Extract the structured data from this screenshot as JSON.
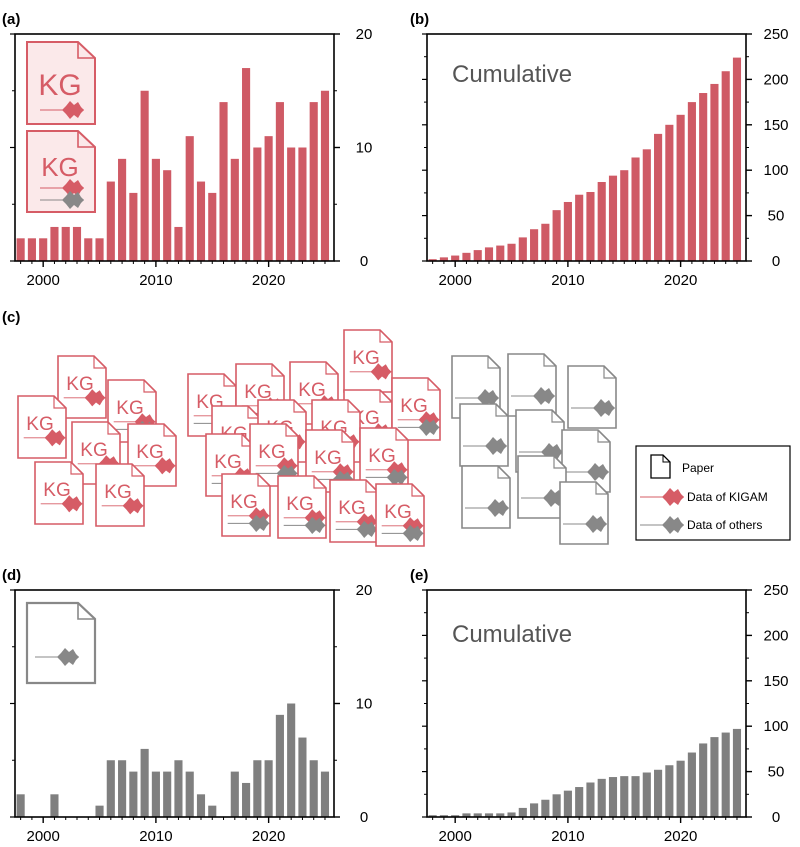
{
  "colors": {
    "kigam": "#d65c66",
    "kigam_fill": "#fbe9ea",
    "kigam_bar": "#cf5a65",
    "others": "#888888",
    "others_bar": "#7f7f7f",
    "axis": "#000000",
    "cumulative_text": "#555555"
  },
  "icons": {
    "kg_text": "KG"
  },
  "legend": {
    "paper": "Paper",
    "kigam": "Data of KIGAM",
    "others": "Data of others"
  },
  "chart_data": [
    {
      "label": "(a)",
      "type": "bar",
      "x": [
        1998,
        1999,
        2000,
        2001,
        2002,
        2003,
        2004,
        2005,
        2006,
        2007,
        2008,
        2009,
        2010,
        2011,
        2012,
        2013,
        2014,
        2015,
        2016,
        2017,
        2018,
        2019,
        2020,
        2021,
        2022,
        2023,
        2024,
        2025
      ],
      "values": [
        2,
        2,
        2,
        3,
        3,
        3,
        2,
        2,
        7,
        9,
        6,
        15,
        9,
        8,
        3,
        11,
        7,
        6,
        14,
        9,
        17,
        10,
        11,
        14,
        10,
        10,
        14,
        15
      ],
      "xticks": [
        2000,
        2010,
        2020
      ],
      "yticks": [
        0,
        10,
        20
      ],
      "ylim": [
        0,
        20
      ],
      "xlim": [
        1997.5,
        2025.8
      ],
      "y_axis_side": "right",
      "color": "kigam"
    },
    {
      "label": "(b)",
      "type": "bar",
      "title": "Cumulative",
      "x": [
        1998,
        1999,
        2000,
        2001,
        2002,
        2003,
        2004,
        2005,
        2006,
        2007,
        2008,
        2009,
        2010,
        2011,
        2012,
        2013,
        2014,
        2015,
        2016,
        2017,
        2018,
        2019,
        2020,
        2021,
        2022,
        2023,
        2024,
        2025
      ],
      "values": [
        2,
        4,
        6,
        9,
        12,
        15,
        17,
        19,
        26,
        35,
        41,
        56,
        65,
        73,
        76,
        87,
        94,
        100,
        114,
        123,
        140,
        150,
        161,
        175,
        185,
        195,
        209,
        224
      ],
      "xticks": [
        2000,
        2010,
        2020
      ],
      "yticks": [
        0,
        50,
        100,
        150,
        200,
        250
      ],
      "ylim": [
        0,
        250
      ],
      "xlim": [
        1997.5,
        2025.8
      ],
      "y_axis_side": "right",
      "color": "kigam"
    },
    {
      "label": "(d)",
      "type": "bar",
      "x": [
        1998,
        1999,
        2000,
        2001,
        2002,
        2003,
        2004,
        2005,
        2006,
        2007,
        2008,
        2009,
        2010,
        2011,
        2012,
        2013,
        2014,
        2015,
        2016,
        2017,
        2018,
        2019,
        2020,
        2021,
        2022,
        2023,
        2024,
        2025
      ],
      "values": [
        2,
        0,
        0,
        2,
        0,
        0,
        0,
        1,
        5,
        5,
        4,
        6,
        4,
        4,
        5,
        4,
        2,
        1,
        0,
        4,
        3,
        5,
        5,
        9,
        10,
        7,
        5,
        4
      ],
      "xticks": [
        2000,
        2010,
        2020
      ],
      "yticks": [
        0,
        10,
        20
      ],
      "ylim": [
        0,
        20
      ],
      "xlim": [
        1997.5,
        2025.8
      ],
      "y_axis_side": "right",
      "color": "others"
    },
    {
      "label": "(e)",
      "type": "bar",
      "title": "Cumulative",
      "x": [
        1998,
        1999,
        2000,
        2001,
        2002,
        2003,
        2004,
        2005,
        2006,
        2007,
        2008,
        2009,
        2010,
        2011,
        2012,
        2013,
        2014,
        2015,
        2016,
        2017,
        2018,
        2019,
        2020,
        2021,
        2022,
        2023,
        2024,
        2025
      ],
      "values": [
        2,
        2,
        2,
        4,
        4,
        4,
        4,
        5,
        10,
        15,
        19,
        25,
        29,
        33,
        38,
        42,
        44,
        45,
        45,
        49,
        52,
        57,
        62,
        71,
        81,
        88,
        93,
        97
      ],
      "xticks": [
        2000,
        2010,
        2020
      ],
      "yticks": [
        0,
        50,
        100,
        150,
        200,
        250
      ],
      "ylim": [
        0,
        250
      ],
      "xlim": [
        1997.5,
        2025.8
      ],
      "y_axis_side": "right",
      "color": "others"
    }
  ],
  "panel_c": {
    "label": "(c)"
  }
}
